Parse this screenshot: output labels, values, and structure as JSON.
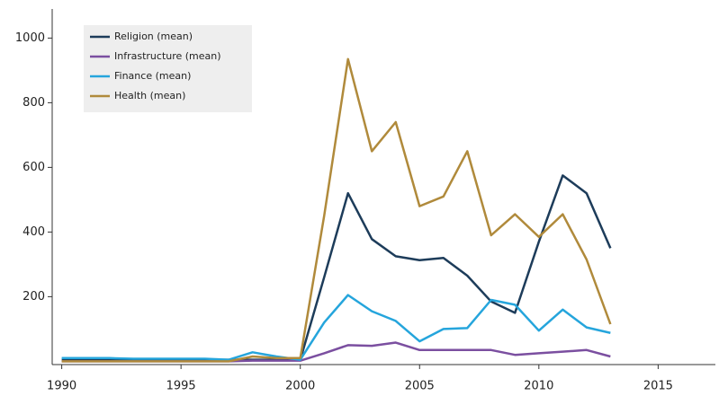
{
  "chart_data": {
    "type": "line",
    "x": [
      1990,
      1991,
      1992,
      1993,
      1994,
      1995,
      1996,
      1997,
      1998,
      1999,
      2000,
      2001,
      2002,
      2003,
      2004,
      2005,
      2006,
      2007,
      2008,
      2009,
      2010,
      2011,
      2012,
      2013
    ],
    "series": [
      {
        "name": "Religion (mean)",
        "color": "#1d3c5a",
        "values": [
          5,
          5,
          5,
          5,
          5,
          5,
          5,
          5,
          5,
          5,
          5,
          260,
          520,
          378,
          325,
          313,
          320,
          265,
          185,
          150,
          370,
          575,
          520,
          350
        ]
      },
      {
        "name": "Infrastructure (mean)",
        "color": "#7b4fa0",
        "values": [
          0,
          0,
          0,
          0,
          0,
          0,
          0,
          0,
          2,
          2,
          2,
          25,
          50,
          48,
          58,
          35,
          35,
          35,
          35,
          20,
          25,
          30,
          35,
          15
        ]
      },
      {
        "name": "Finance (mean)",
        "color": "#25a5dc",
        "values": [
          10,
          10,
          10,
          8,
          8,
          8,
          8,
          5,
          28,
          15,
          5,
          120,
          205,
          155,
          125,
          62,
          100,
          103,
          190,
          175,
          95,
          160,
          105,
          88
        ]
      },
      {
        "name": "Health (mean)",
        "color": "#b08a3b",
        "values": [
          0,
          0,
          0,
          0,
          0,
          0,
          0,
          0,
          15,
          10,
          10,
          450,
          935,
          650,
          740,
          480,
          510,
          650,
          390,
          455,
          385,
          455,
          315,
          115
        ]
      }
    ],
    "xlim": [
      1989.6,
      2017.4
    ],
    "ylim": [
      -10,
      1090
    ],
    "xticks": [
      1990,
      1995,
      2000,
      2005,
      2010,
      2015
    ],
    "yticks": [
      200,
      400,
      600,
      800,
      1000
    ],
    "legend": "upper left"
  }
}
